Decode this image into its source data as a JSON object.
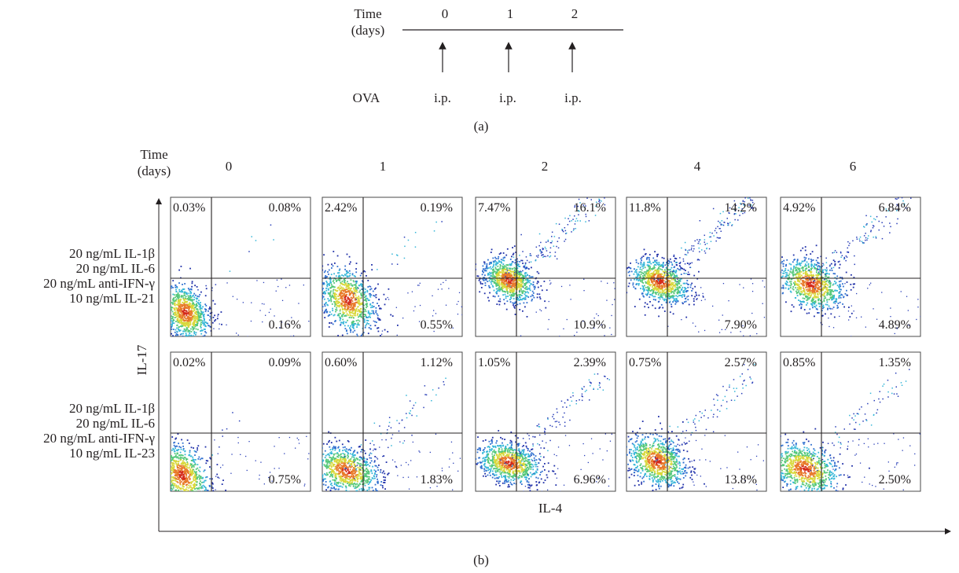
{
  "panel_a": {
    "time_label_line1": "Time",
    "time_label_line2": "(days)",
    "days": [
      "0",
      "1",
      "2"
    ],
    "row_label": "OVA",
    "injections": [
      "i.p.",
      "i.p.",
      "i.p."
    ],
    "caption": "(a)"
  },
  "panel_b": {
    "time_label_line1": "Time",
    "time_label_line2": "(days)",
    "days": [
      "0",
      "1",
      "2",
      "4",
      "6"
    ],
    "y_axis_label": "IL-17",
    "x_axis_label": "IL-4",
    "caption": "(b)",
    "rows": [
      {
        "condition_lines": [
          "20 ng/mL IL-1β",
          "20 ng/mL IL-6",
          "20 ng/mL anti-IFN-γ",
          "10 ng/mL IL-21"
        ],
        "plots": [
          {
            "upper_left": "0.03%",
            "upper_right": "0.08%",
            "lower_right": "0.16%"
          },
          {
            "upper_left": "2.42%",
            "upper_right": "0.19%",
            "lower_right": "0.55%"
          },
          {
            "upper_left": "7.47%",
            "upper_right": "16.1%",
            "lower_right": "10.9%"
          },
          {
            "upper_left": "11.8%",
            "upper_right": "14.2%",
            "lower_right": "7.90%"
          },
          {
            "upper_left": "4.92%",
            "upper_right": "6.84%",
            "lower_right": "4.89%"
          }
        ]
      },
      {
        "condition_lines": [
          "20 ng/mL IL-1β",
          "20 ng/mL IL-6",
          "20 ng/mL anti-IFN-γ",
          "10 ng/mL IL-23"
        ],
        "plots": [
          {
            "upper_left": "0.02%",
            "upper_right": "0.09%",
            "lower_right": "0.75%"
          },
          {
            "upper_left": "0.60%",
            "upper_right": "1.12%",
            "lower_right": "1.83%"
          },
          {
            "upper_left": "1.05%",
            "upper_right": "2.39%",
            "lower_right": "6.96%"
          },
          {
            "upper_left": "0.75%",
            "upper_right": "2.57%",
            "lower_right": "13.8%"
          },
          {
            "upper_left": "0.85%",
            "upper_right": "1.35%",
            "lower_right": "2.50%"
          }
        ]
      }
    ]
  }
}
